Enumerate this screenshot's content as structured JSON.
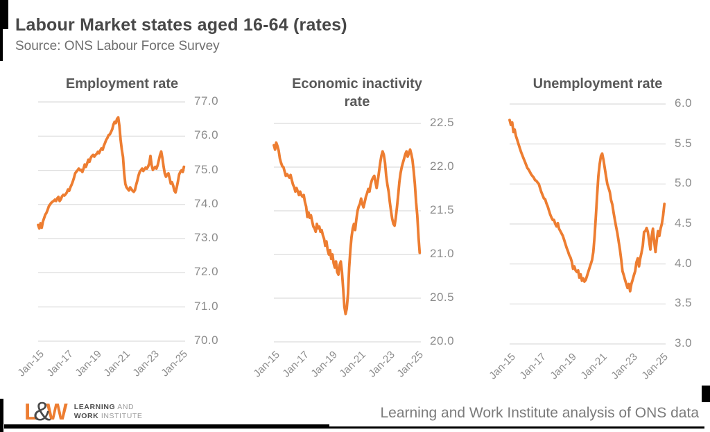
{
  "header": {
    "title": "Labour Market states aged 16-64 (rates)",
    "source": "Source: ONS Labour Force Survey"
  },
  "footer": {
    "attribution": "Learning and Work Institute analysis of ONS data",
    "logo": {
      "l": "L",
      "amp": "&",
      "w": "W",
      "line1_bold": "LEARNING",
      "line1_rest": " AND",
      "line2_bold": "WORK",
      "line2_rest": " INSTITUTE"
    }
  },
  "colors": {
    "line": "#ed7d31",
    "grid": "#dcdcdc",
    "tick_label": "#8c8c8c",
    "chart_title": "#595959"
  },
  "chart_data": [
    {
      "id": "employment-rate",
      "type": "line",
      "title": "Employment rate",
      "ylim": [
        70,
        77
      ],
      "yticks": [
        77,
        76,
        75,
        74,
        73,
        72,
        71,
        70
      ],
      "ytick_labels": [
        "77.0",
        "76.0",
        "75.0",
        "74.0",
        "73.0",
        "72.0",
        "71.0",
        "70.0"
      ],
      "x_domain": [
        2015.0,
        2025.25
      ],
      "x_start": 2015.0,
      "x_step": 0.0833333,
      "x_ticks": [
        2015,
        2017,
        2019,
        2021,
        2023,
        2025
      ],
      "x_ticklabels": [
        "Jan-15",
        "Jan-17",
        "Jan-19",
        "Jan-21",
        "Jan-23",
        "Jan-25"
      ],
      "values": [
        73.4,
        73.3,
        73.45,
        73.32,
        73.5,
        73.6,
        73.7,
        73.76,
        73.85,
        73.95,
        74.0,
        74.05,
        74.08,
        74.1,
        74.14,
        74.1,
        74.18,
        74.22,
        74.1,
        74.15,
        74.24,
        74.28,
        74.26,
        74.3,
        74.35,
        74.44,
        74.4,
        74.5,
        74.58,
        74.67,
        74.78,
        74.91,
        74.96,
        75.0,
        75.05,
        75.0,
        75.01,
        74.95,
        75.05,
        75.17,
        75.1,
        75.2,
        75.31,
        75.25,
        75.36,
        75.42,
        75.45,
        75.4,
        75.45,
        75.48,
        75.54,
        75.5,
        75.58,
        75.64,
        75.6,
        75.72,
        75.8,
        75.89,
        75.95,
        76.03,
        76.05,
        76.12,
        76.2,
        76.34,
        76.42,
        76.38,
        76.5,
        76.55,
        76.3,
        75.9,
        75.6,
        75.39,
        74.91,
        74.6,
        74.5,
        74.45,
        74.41,
        74.5,
        74.45,
        74.4,
        74.37,
        74.42,
        74.57,
        74.7,
        74.85,
        74.95,
        75.0,
        75.05,
        74.98,
        75.03,
        75.08,
        75.05,
        75.11,
        75.2,
        75.42,
        75.15,
        75.01,
        75.06,
        75.1,
        75.05,
        75.15,
        75.3,
        75.45,
        75.55,
        75.35,
        75.1,
        74.9,
        74.81,
        74.88,
        74.91,
        74.77,
        74.61,
        74.65,
        74.55,
        74.4,
        74.35,
        74.5,
        74.68,
        74.88,
        74.95,
        75.0,
        74.95,
        75.1
      ]
    },
    {
      "id": "economic-inactivity-rate",
      "type": "line",
      "title": "Economic inactivity rate",
      "ylim": [
        20,
        22.5
      ],
      "yticks": [
        22.5,
        22.0,
        21.5,
        21.0,
        20.5,
        20.0
      ],
      "ytick_labels": [
        "22.5",
        "22.0",
        "21.5",
        "21.0",
        "20.5",
        "20.0"
      ],
      "x_domain": [
        2015.0,
        2025.25
      ],
      "x_start": 2015.0,
      "x_step": 0.0833333,
      "x_ticks": [
        2015,
        2017,
        2019,
        2021,
        2023,
        2025
      ],
      "x_ticklabels": [
        "Jan-15",
        "Jan-17",
        "Jan-19",
        "Jan-21",
        "Jan-23",
        "Jan-25"
      ],
      "values": [
        22.25,
        22.2,
        22.28,
        22.24,
        22.19,
        22.1,
        22.05,
        22.01,
        22.0,
        21.95,
        21.9,
        21.92,
        21.9,
        21.88,
        21.91,
        21.85,
        21.8,
        21.77,
        21.72,
        21.76,
        21.72,
        21.68,
        21.72,
        21.68,
        21.66,
        21.68,
        21.6,
        21.55,
        21.43,
        21.48,
        21.42,
        21.45,
        21.38,
        21.32,
        21.3,
        21.26,
        21.35,
        21.3,
        21.32,
        21.26,
        21.28,
        21.22,
        21.18,
        21.1,
        21.15,
        21.05,
        21.0,
        21.05,
        20.95,
        21.0,
        20.9,
        20.85,
        20.92,
        20.8,
        20.77,
        20.88,
        20.92,
        20.8,
        20.6,
        20.4,
        20.32,
        20.38,
        20.55,
        20.85,
        21.05,
        21.2,
        21.3,
        21.35,
        21.28,
        21.4,
        21.5,
        21.55,
        21.58,
        21.64,
        21.58,
        21.54,
        21.6,
        21.66,
        21.7,
        21.75,
        21.72,
        21.8,
        21.85,
        21.88,
        21.9,
        21.83,
        21.76,
        21.85,
        21.95,
        22.05,
        22.13,
        22.18,
        22.14,
        22.05,
        21.9,
        21.8,
        21.72,
        21.6,
        21.5,
        21.41,
        21.35,
        21.33,
        21.42,
        21.54,
        21.68,
        21.83,
        21.93,
        22.0,
        22.05,
        22.1,
        22.15,
        22.18,
        22.12,
        22.16,
        22.2,
        22.15,
        22.08,
        21.95,
        21.8,
        21.6,
        21.45,
        21.2,
        21.02
      ]
    },
    {
      "id": "unemployment-rate",
      "type": "line",
      "title": "Unemployment rate",
      "ylim": [
        3,
        6
      ],
      "yticks": [
        6.0,
        5.5,
        5.0,
        4.5,
        4.0,
        3.5,
        3.0
      ],
      "ytick_labels": [
        "6.0",
        "5.5",
        "5.0",
        "4.5",
        "4.0",
        "3.5",
        "3.0"
      ],
      "x_domain": [
        2015.0,
        2025.25
      ],
      "x_start": 2015.0,
      "x_step": 0.0833333,
      "x_ticks": [
        2015,
        2017,
        2019,
        2021,
        2023,
        2025
      ],
      "x_ticklabels": [
        "Jan-15",
        "Jan-17",
        "Jan-19",
        "Jan-21",
        "Jan-23",
        "Jan-25"
      ],
      "values": [
        5.8,
        5.74,
        5.77,
        5.65,
        5.68,
        5.6,
        5.55,
        5.5,
        5.45,
        5.4,
        5.36,
        5.32,
        5.28,
        5.24,
        5.2,
        5.18,
        5.15,
        5.12,
        5.1,
        5.08,
        5.05,
        5.04,
        5.02,
        5.0,
        4.95,
        4.9,
        4.86,
        4.82,
        4.81,
        4.76,
        4.72,
        4.67,
        4.62,
        4.58,
        4.55,
        4.55,
        4.5,
        4.47,
        4.51,
        4.44,
        4.41,
        4.38,
        4.35,
        4.3,
        4.25,
        4.2,
        4.16,
        4.11,
        4.08,
        4.03,
        3.94,
        3.97,
        3.92,
        3.9,
        3.92,
        3.83,
        3.87,
        3.79,
        3.82,
        3.78,
        3.8,
        3.85,
        3.9,
        3.95,
        4.0,
        4.05,
        4.15,
        4.35,
        4.6,
        4.86,
        5.1,
        5.25,
        5.35,
        5.38,
        5.3,
        5.2,
        5.1,
        5.0,
        4.95,
        4.9,
        4.8,
        4.74,
        4.64,
        4.55,
        4.46,
        4.38,
        4.28,
        4.18,
        4.05,
        3.91,
        3.86,
        3.8,
        3.75,
        3.7,
        3.75,
        3.66,
        3.75,
        3.8,
        3.86,
        3.91,
        4.02,
        4.07,
        3.97,
        4.07,
        4.14,
        4.23,
        4.4,
        4.41,
        4.45,
        4.4,
        4.29,
        4.18,
        4.35,
        4.44,
        4.28,
        4.15,
        4.3,
        4.41,
        4.35,
        4.44,
        4.5,
        4.6,
        4.75
      ]
    }
  ]
}
